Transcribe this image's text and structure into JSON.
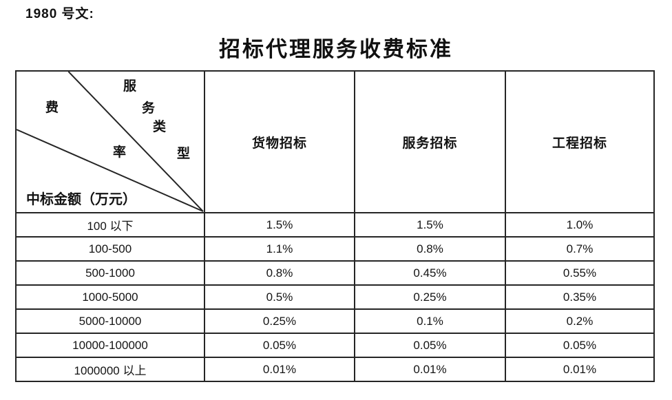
{
  "document": {
    "ref_label": "1980 号文:",
    "title": "招标代理服务收费标准"
  },
  "fee_table": {
    "corner_header": {
      "diagonal_top_label": "服务类型",
      "diagonal_top_chars": [
        "服",
        "务",
        "类",
        "型"
      ],
      "diagonal_middle_label": "费率",
      "diagonal_middle_chars": [
        "费",
        "率"
      ],
      "row_axis_label": "中标金额（万元）"
    },
    "column_headers": [
      "货物招标",
      "服务招标",
      "工程招标"
    ],
    "rows": [
      {
        "range": "100 以下",
        "values": [
          "1.5%",
          "1.5%",
          "1.0%"
        ]
      },
      {
        "range": "100-500",
        "values": [
          "1.1%",
          "0.8%",
          "0.7%"
        ]
      },
      {
        "range": "500-1000",
        "values": [
          "0.8%",
          "0.45%",
          "0.55%"
        ]
      },
      {
        "range": "1000-5000",
        "values": [
          "0.5%",
          "0.25%",
          "0.35%"
        ]
      },
      {
        "range": "5000-10000",
        "values": [
          "0.25%",
          "0.1%",
          "0.2%"
        ]
      },
      {
        "range": "10000-100000",
        "values": [
          "0.05%",
          "0.05%",
          "0.05%"
        ]
      },
      {
        "range": "1000000 以上",
        "values": [
          "0.01%",
          "0.01%",
          "0.01%"
        ]
      }
    ],
    "line_color": "#252525"
  }
}
